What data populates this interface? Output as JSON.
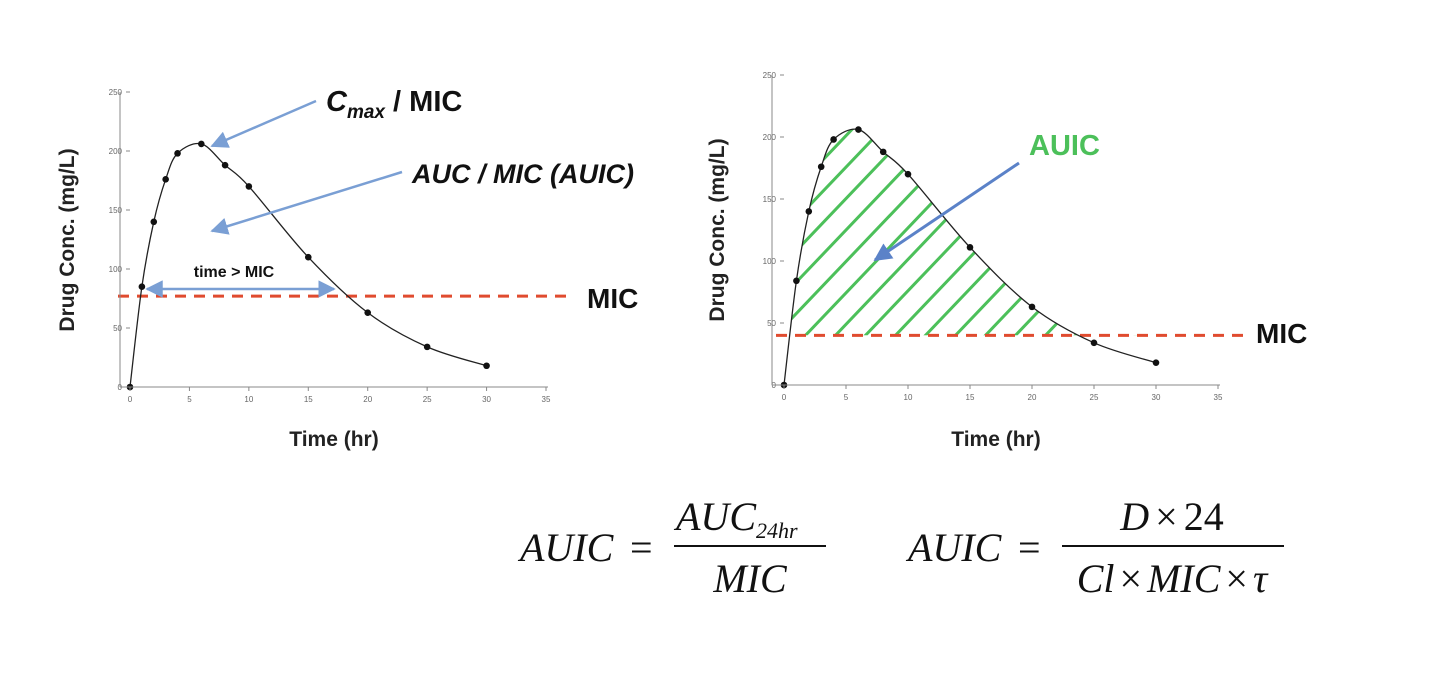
{
  "chart_data": [
    {
      "type": "line",
      "xlabel": "Time (hr)",
      "ylabel": "Drug Conc. (mg/L)",
      "xlim": [
        0,
        35
      ],
      "ylim": [
        0,
        250
      ],
      "x_ticks": [
        "0",
        "5",
        "10",
        "15",
        "20",
        "25",
        "30",
        "35"
      ],
      "y_ticks": [
        "0",
        "50",
        "100",
        "150",
        "200",
        "250"
      ],
      "points": {
        "x": [
          0,
          1,
          2,
          3,
          4,
          6,
          8,
          10,
          15,
          20,
          25,
          30
        ],
        "y": [
          0,
          85,
          140,
          176,
          198,
          206,
          188,
          170,
          110,
          63,
          34,
          18
        ]
      },
      "mic": 77,
      "mic_label": "MIC",
      "annotations": {
        "cmax_main": "C",
        "cmax_sub": "max",
        "cmax_rest": " / MIC",
        "auc": "AUC / MIC (AUIC)",
        "time_over": "time > MIC"
      },
      "colors": {
        "curve": "#222222",
        "mic_line": "#e04b2f",
        "arrow": "#7a9fd4"
      }
    },
    {
      "type": "area",
      "xlabel": "Time (hr)",
      "ylabel": "Drug Conc. (mg/L)",
      "xlim": [
        0,
        35
      ],
      "ylim": [
        0,
        250
      ],
      "x_ticks": [
        "0",
        "5",
        "10",
        "15",
        "20",
        "25",
        "30",
        "35"
      ],
      "y_ticks": [
        "0",
        "50",
        "100",
        "150",
        "200",
        "250"
      ],
      "points": {
        "x": [
          0,
          1,
          2,
          3,
          4,
          6,
          8,
          10,
          15,
          20,
          25,
          30
        ],
        "y": [
          0,
          84,
          140,
          176,
          198,
          206,
          188,
          170,
          111,
          63,
          34,
          18
        ]
      },
      "mic": 40,
      "mic_label": "MIC",
      "annotations": {
        "auic": "AUIC"
      },
      "colors": {
        "curve": "#222222",
        "mic_line": "#e04b2f",
        "hatch": "#4cc05a",
        "arrow": "#5b82c8",
        "label": "#4cc05a"
      }
    }
  ],
  "equations": {
    "eq1": {
      "lhs": "AUIC",
      "eq": "=",
      "num": "AUC",
      "num_sub": "24hr",
      "den": "MIC"
    },
    "eq2": {
      "lhs": "AUIC",
      "eq": "=",
      "num_a": "D",
      "times": "×",
      "num_b": "24",
      "den_a": "Cl",
      "den_b": "MIC",
      "den_c": "τ"
    }
  }
}
